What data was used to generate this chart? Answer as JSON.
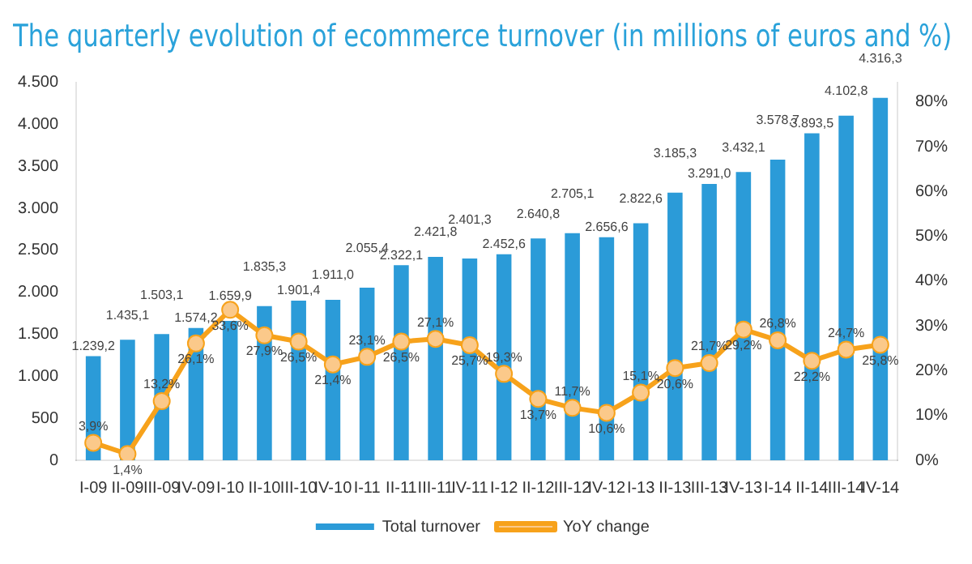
{
  "chart_data": {
    "type": "bar",
    "title": "The quarterly evolution of ecommerce turnover (in millions of euros and %)",
    "categories": [
      "I-09",
      "II-09",
      "III-09",
      "IV-09",
      "I-10",
      "II-10",
      "III-10",
      "IV-10",
      "I-11",
      "II-11",
      "III-11",
      "IV-11",
      "I-12",
      "II-12",
      "III-12",
      "IV-12",
      "I-13",
      "II-13",
      "III-13",
      "IV-13",
      "I-14",
      "II-14",
      "III-14",
      "IV-14"
    ],
    "series": [
      {
        "name": "Total turnover",
        "color": "#2b9bd8",
        "values": [
          1239.2,
          1435.1,
          1503.1,
          1574.2,
          1659.9,
          1835.3,
          1901.4,
          1911.0,
          2055.4,
          2322.1,
          2421.8,
          2401.3,
          2452.6,
          2640.8,
          2705.1,
          2656.6,
          2822.6,
          3185.3,
          3291.0,
          3432.1,
          3578.7,
          3893.5,
          4102.8,
          4316.3
        ],
        "value_labels": [
          "1.239,2",
          "1.435,1",
          "1.503,1",
          "1.574,2",
          "1.659,9",
          "1.835,3",
          "1.901,4",
          "1.911,0",
          "2.055,4",
          "2.322,1",
          "2.421,8",
          "2.401,3",
          "2.452,6",
          "2.640,8",
          "2.705,1",
          "2.656,6",
          "2.822,6",
          "3.185,3",
          "3.291,0",
          "3.432,1",
          "3.578,7",
          "3.893,5",
          "4.102,8",
          "4.316,3"
        ]
      },
      {
        "name": "YoY change",
        "type": "line",
        "axis": "y2",
        "color": "#f7a21b",
        "values": [
          3.9,
          1.4,
          13.2,
          26.1,
          33.6,
          27.9,
          26.5,
          21.4,
          23.1,
          26.5,
          27.1,
          25.7,
          19.3,
          13.7,
          11.7,
          10.6,
          15.1,
          20.6,
          21.7,
          29.2,
          26.8,
          22.2,
          24.7,
          25.8
        ],
        "value_labels": [
          "3,9%",
          "1,4%",
          "13,2%",
          "26,1%",
          "33,6%",
          "27,9%",
          "26,5%",
          "21,4%",
          "23,1%",
          "26,5%",
          "27,1%",
          "25,7%",
          "19,3%",
          "13,7%",
          "11,7%",
          "10,6%",
          "15,1%",
          "20,6%",
          "21,7%",
          "29,2%",
          "26,8%",
          "22,2%",
          "24,7%",
          "25,8%"
        ]
      }
    ],
    "ylim": [
      0,
      4500
    ],
    "yticks": [
      {
        "value": 0,
        "label": "0"
      },
      {
        "value": 500,
        "label": "500"
      },
      {
        "value": 1000,
        "label": "1.000"
      },
      {
        "value": 1500,
        "label": "1.500"
      },
      {
        "value": 2000,
        "label": "2.000"
      },
      {
        "value": 2500,
        "label": "2.500"
      },
      {
        "value": 3000,
        "label": "3.000"
      },
      {
        "value": 3500,
        "label": "3.500"
      },
      {
        "value": 4000,
        "label": "4.000"
      },
      {
        "value": 4500,
        "label": "4.500"
      }
    ],
    "y2lim": [
      0,
      84.4
    ],
    "y2ticks": [
      {
        "value": 0,
        "label": "0%"
      },
      {
        "value": 10,
        "label": "10%"
      },
      {
        "value": 20,
        "label": "20%"
      },
      {
        "value": 30,
        "label": "30%"
      },
      {
        "value": 40,
        "label": "40%"
      },
      {
        "value": 50,
        "label": "50%"
      },
      {
        "value": 60,
        "label": "60%"
      },
      {
        "value": 70,
        "label": "70%"
      },
      {
        "value": 80,
        "label": "80%"
      }
    ],
    "marker": "circle",
    "grid": false,
    "legend": "bottom"
  }
}
